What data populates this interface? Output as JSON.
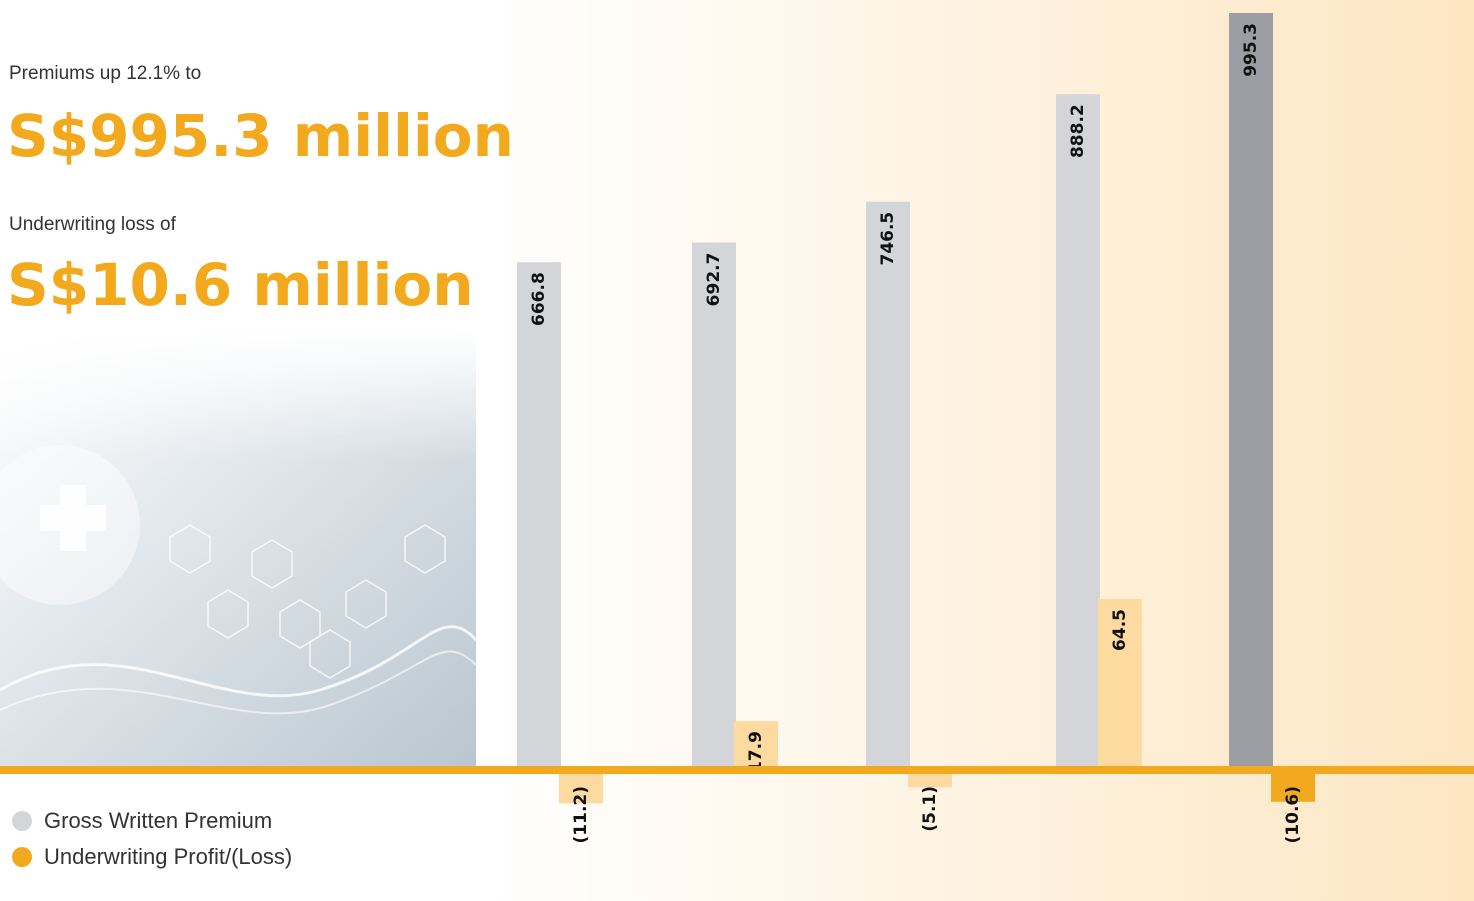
{
  "chart_data": {
    "type": "bar",
    "subtitle": "Premiums up 12.1% to",
    "title": "S$995.3 million",
    "subtitle_2": "Underwriting loss of",
    "title_2": "S$10.6 million",
    "categories": [
      null,
      null,
      null,
      null,
      null
    ],
    "series": [
      {
        "name": "Gross Written Premium",
        "color": "#d4d5d8",
        "colors": [
          "#d4d5d8",
          "#d4d5d8",
          "#d4d5d8",
          "#d4d5d8",
          "#9d9ea3"
        ],
        "values": [
          666.8,
          692.7,
          746.5,
          888.2,
          995.3
        ]
      },
      {
        "name": "Underwriting Profit/(Loss)",
        "color": "#f3a91e",
        "colors": [
          "#fddba0",
          "#fddba0",
          "#fddba0",
          "#fddba0",
          "#f3a91e"
        ],
        "values": [
          -11.2,
          17.9,
          -5.1,
          64.5,
          -10.6
        ],
        "value_labels": [
          "(11.2)",
          "17.9",
          "(5.1)",
          "64.5",
          "(10.6)"
        ]
      }
    ]
  }
}
